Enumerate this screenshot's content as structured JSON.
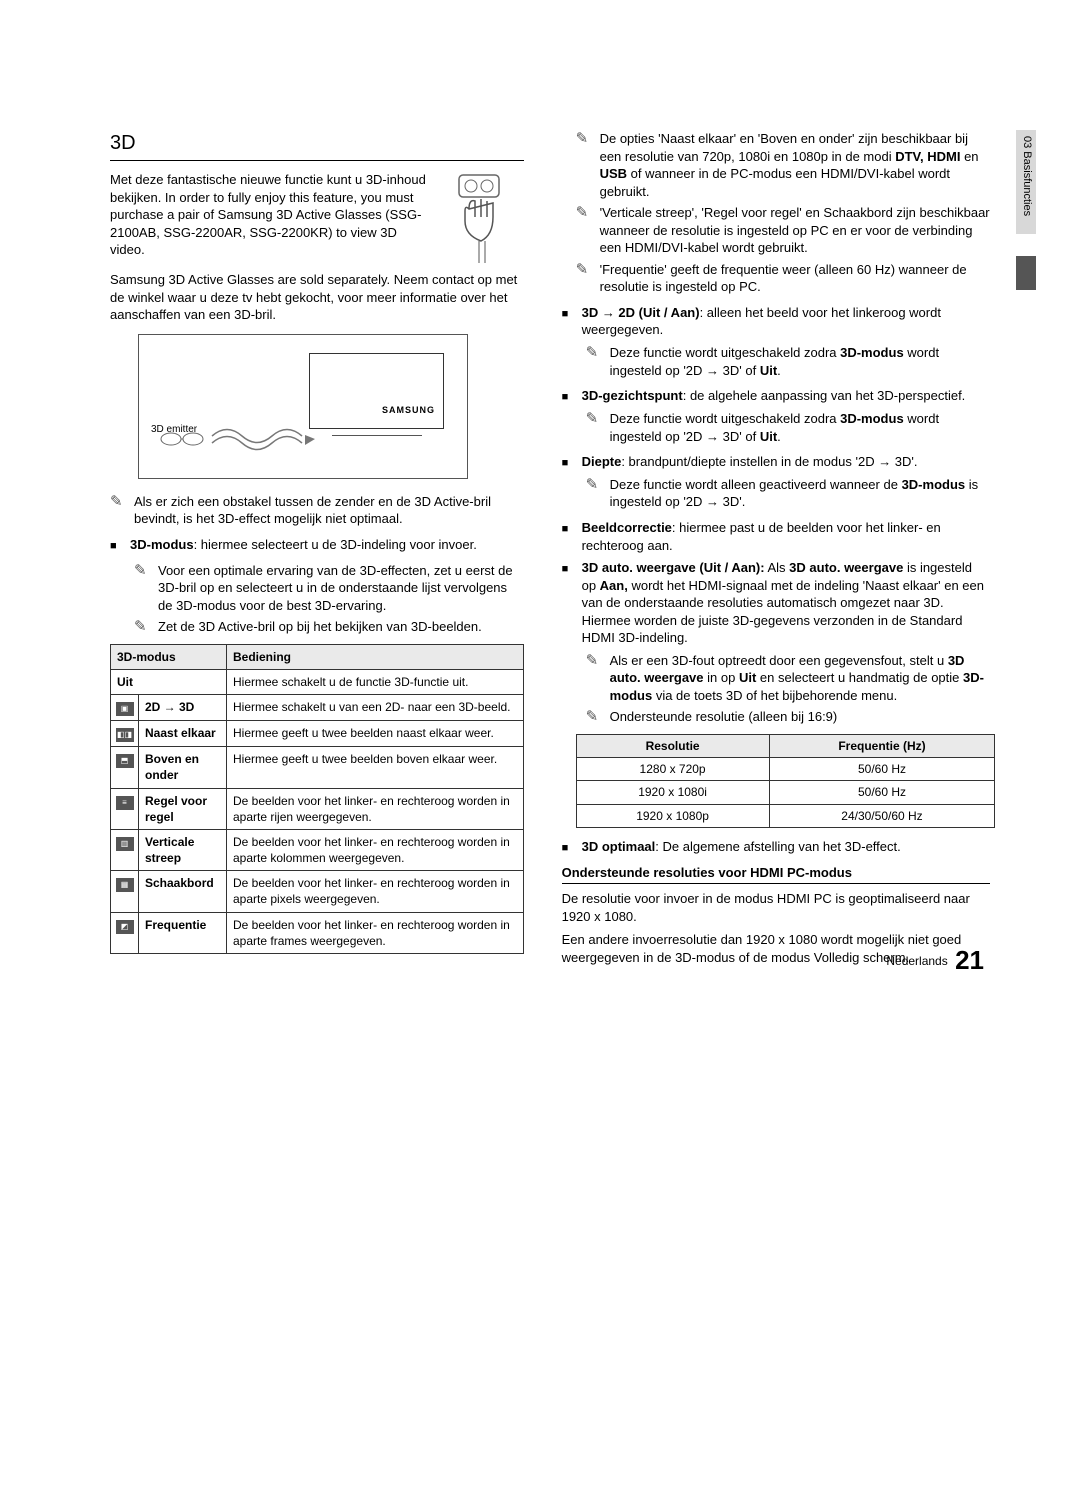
{
  "sideTab": "03   Basisfuncties",
  "footer": {
    "lang": "Nederlands",
    "page": "21"
  },
  "left": {
    "title": "3D",
    "intro1": "Met deze fantastische nieuwe functie kunt u 3D-inhoud bekijken. In order to fully enjoy this feature, you must purchase a pair of Samsung 3D Active Glasses (SSG-2100AB, SSG-2200AR, SSG-2200KR) to view 3D video.",
    "intro2": "Samsung 3D Active Glasses are sold separately. Neem contact op met de winkel waar u deze tv hebt gekocht, voor meer informatie over het aanschaffen van een 3D-bril.",
    "diagram": {
      "emitterLabel": "3D emitter",
      "brand": "SAMSUNG"
    },
    "obstacleNote": "Als er zich een obstakel tussen de zender en de 3D Active-bril bevindt, is het 3D-effect mogelijk niet optimaal.",
    "modus": {
      "label": "3D-modus",
      "desc": ": hiermee selecteert u de 3D-indeling voor invoer.",
      "tip1": "Voor een optimale ervaring van de 3D-effecten, zet u eerst de 3D-bril op en selecteert u in de onderstaande lijst vervolgens de 3D-modus voor de best 3D-ervaring.",
      "tip2": "Zet de 3D Active-bril op bij het bekijken van 3D-beelden."
    },
    "table": {
      "hdrMode": "3D-modus",
      "hdrOp": "Bediening",
      "rows": [
        {
          "icon": "",
          "name": "Uit",
          "op": "Hiermee schakelt u de functie 3D-functie uit.",
          "span": true
        },
        {
          "icon": "▣",
          "name": "2D → 3D",
          "op": "Hiermee schakelt u van een 2D- naar een 3D-beeld."
        },
        {
          "icon": "◧◨",
          "name": "Naast elkaar",
          "op": "Hiermee geeft u twee beelden naast elkaar weer."
        },
        {
          "icon": "⬒",
          "name": "Boven en onder",
          "op": "Hiermee geeft u twee beelden boven elkaar weer."
        },
        {
          "icon": "≡",
          "name": "Regel voor regel",
          "op": "De beelden voor het linker- en rechteroog worden in aparte rijen weergegeven."
        },
        {
          "icon": "▥",
          "name": "Verticale streep",
          "op": "De beelden voor het linker- en rechteroog worden in aparte kolommen weergegeven."
        },
        {
          "icon": "▦",
          "name": "Schaakbord",
          "op": "De beelden voor het linker- en rechteroog worden in aparte pixels weergegeven."
        },
        {
          "icon": "◩",
          "name": "Frequentie",
          "op": "De beelden voor het linker- en rechteroog worden in aparte frames weergegeven."
        }
      ]
    }
  },
  "right": {
    "topNotes": [
      {
        "pre": "De opties 'Naast elkaar' en 'Boven en onder' zijn beschikbaar bij een resolutie van 720p, 1080i en 1080p in de modi ",
        "b1": "DTV, HDMI",
        "mid": " en ",
        "b2": "USB",
        "post": " of wanneer in de PC-modus een HDMI/DVI-kabel wordt gebruikt."
      },
      {
        "txt": "'Verticale streep', 'Regel voor regel' en Schaakbord zijn beschikbaar wanneer de resolutie is ingesteld op PC en er voor de verbinding een HDMI/DVI-kabel wordt gebruikt."
      },
      {
        "txt": "'Frequentie' geeft de frequentie weer (alleen 60 Hz) wanneer de resolutie is ingesteld op PC."
      }
    ],
    "bullets": [
      {
        "title": "3D → 2D (Uit / Aan)",
        "desc": ": alleen het beeld voor het linkeroog wordt weergegeven.",
        "sub": [
          {
            "pre": "Deze functie wordt uitgeschakeld zodra ",
            "b1": "3D-modus",
            "mid": " wordt ingesteld op '2D → 3D' of ",
            "b2": "Uit",
            "post": "."
          }
        ]
      },
      {
        "title": "3D-gezichtspunt",
        "desc": ": de algehele aanpassing van het 3D-perspectief.",
        "sub": [
          {
            "pre": "Deze functie wordt uitgeschakeld zodra ",
            "b1": "3D-modus",
            "mid": " wordt ingesteld op '2D → 3D' of ",
            "b2": "Uit",
            "post": "."
          }
        ]
      },
      {
        "title": "Diepte",
        "desc": ": brandpunt/diepte instellen in de modus '2D → 3D'.",
        "sub": [
          {
            "pre": "Deze functie wordt alleen geactiveerd wanneer de ",
            "b1": "3D-modus",
            "mid": " is ingesteld op '2D → 3D'.",
            "b2": "",
            "post": ""
          }
        ]
      },
      {
        "title": "Beeldcorrectie",
        "desc": ": hiermee past u de beelden voor het linker- en rechteroog aan."
      },
      {
        "title": "3D auto. weergave (Uit / Aan):",
        "desc_rich": {
          "pre": " Als ",
          "b1": "3D auto. weergave",
          "mid": " is ingesteld op ",
          "b2": "Aan,",
          "post": " wordt het HDMI-signaal met de indeling 'Naast elkaar' en een van de onderstaande resoluties automatisch omgezet naar 3D. Hiermee worden de juiste 3D-gegevens verzonden in de Standard HDMI 3D-indeling."
        },
        "sub": [
          {
            "pre": "Als er een 3D-fout optreedt door een gegevensfout, stelt u ",
            "b1": "3D auto. weergave",
            "mid": " in op ",
            "b2": "Uit",
            "post_rich": {
              "pre": " en selecteert u handmatig de optie ",
              "b": "3D-modus",
              "mid2": " via de toets 3D of het bijbehorende menu."
            }
          },
          {
            "txt": "Ondersteunde resolutie (alleen bij 16:9)"
          }
        ]
      }
    ],
    "resTable": {
      "h1": "Resolutie",
      "h2": "Frequentie (Hz)",
      "rows": [
        [
          "1280 x 720p",
          "50/60 Hz"
        ],
        [
          "1920 x 1080i",
          "50/60 Hz"
        ],
        [
          "1920 x 1080p",
          "24/30/50/60 Hz"
        ]
      ]
    },
    "optBullet": {
      "title": "3D optimaal",
      "desc": ": De algemene afstelling van het 3D-effect."
    },
    "hdmi": {
      "hdr": "Ondersteunde resoluties voor HDMI PC-modus",
      "p1": "De resolutie voor invoer in de modus HDMI PC is geoptimaliseerd naar 1920 x 1080.",
      "p2": "Een andere invoerresolutie dan 1920 x 1080 wordt mogelijk niet goed weergegeven in de 3D-modus of de modus Volledig scherm."
    }
  }
}
